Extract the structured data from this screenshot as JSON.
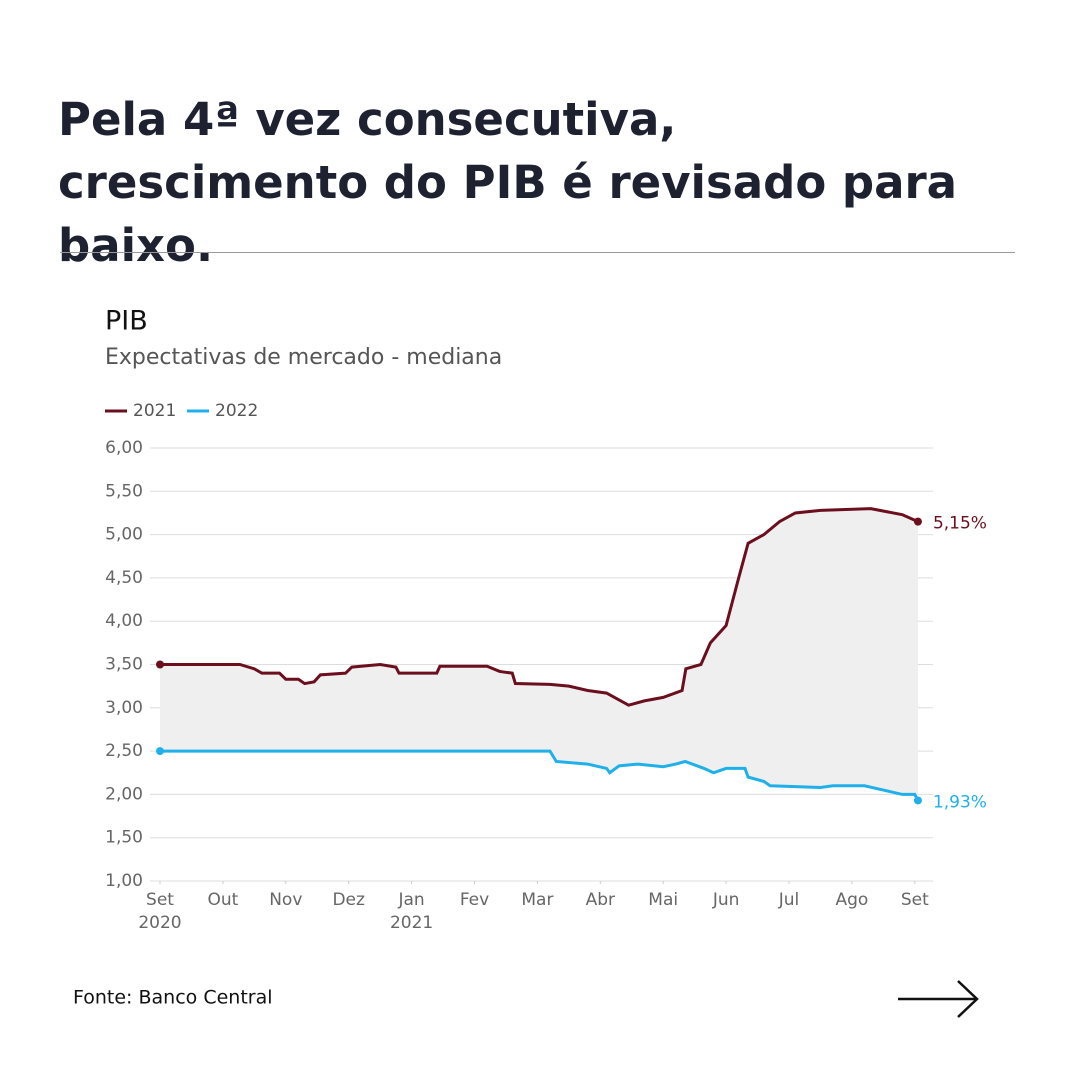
{
  "headline": "Pela 4ª vez consecutiva, crescimento do PIB é revisado para baixo.",
  "chart_data": {
    "type": "line",
    "title": "PIB",
    "subtitle": "Expectativas de mercado - mediana",
    "xlim": [
      0,
      12.5
    ],
    "xticks": [
      {
        "value": 0,
        "label": "Set"
      },
      {
        "value": 1,
        "label": "Out"
      },
      {
        "value": 2,
        "label": "Nov"
      },
      {
        "value": 3,
        "label": "Dez"
      },
      {
        "value": 4,
        "label": "Jan"
      },
      {
        "value": 5,
        "label": "Fev"
      },
      {
        "value": 6,
        "label": "Mar"
      },
      {
        "value": 7,
        "label": "Abr"
      },
      {
        "value": 8,
        "label": "Mai"
      },
      {
        "value": 9,
        "label": "Jun"
      },
      {
        "value": 10,
        "label": "Jul"
      },
      {
        "value": 11,
        "label": "Ago"
      },
      {
        "value": 12,
        "label": "Set"
      }
    ],
    "xtick_years": [
      {
        "value": 0,
        "label": "2020"
      },
      {
        "value": 4,
        "label": "2021"
      }
    ],
    "ylim": [
      1,
      6
    ],
    "yticks": [
      {
        "value": 1,
        "label": "1,00"
      },
      {
        "value": 1.5,
        "label": "1,50"
      },
      {
        "value": 2,
        "label": "2,00"
      },
      {
        "value": 2.5,
        "label": "2,50"
      },
      {
        "value": 3,
        "label": "3,00"
      },
      {
        "value": 3.5,
        "label": "3,50"
      },
      {
        "value": 4,
        "label": "4,00"
      },
      {
        "value": 4.5,
        "label": "4,50"
      },
      {
        "value": 5,
        "label": "5,00"
      },
      {
        "value": 5.5,
        "label": "5,50"
      },
      {
        "value": 6,
        "label": "6,00"
      }
    ],
    "grid": true,
    "series": [
      {
        "name": "2021",
        "color": "#6b0f1f",
        "x": [
          0,
          1.27,
          1.5,
          1.62,
          1.9,
          2.0,
          2.2,
          2.3,
          2.45,
          2.55,
          2.95,
          3.05,
          3.5,
          3.75,
          3.8,
          4.4,
          4.45,
          5.2,
          5.4,
          5.6,
          5.65,
          6.2,
          6.5,
          6.8,
          7.1,
          7.45,
          7.7,
          8.0,
          8.3,
          8.36,
          8.6,
          8.75,
          9.0,
          9.2,
          9.35,
          9.6,
          9.85,
          10.1,
          10.5,
          11.3,
          11.8,
          12.05
        ],
        "values": [
          3.5,
          3.5,
          3.45,
          3.4,
          3.4,
          3.33,
          3.33,
          3.28,
          3.3,
          3.38,
          3.4,
          3.47,
          3.5,
          3.47,
          3.4,
          3.4,
          3.48,
          3.48,
          3.42,
          3.4,
          3.28,
          3.27,
          3.25,
          3.2,
          3.17,
          3.03,
          3.08,
          3.12,
          3.2,
          3.45,
          3.5,
          3.75,
          3.95,
          4.5,
          4.9,
          5.0,
          5.15,
          5.25,
          5.28,
          5.3,
          5.23,
          5.15
        ],
        "value_labels": [
          null,
          null,
          null,
          null,
          null,
          null,
          null,
          null,
          null,
          null,
          null,
          null,
          null,
          null,
          null,
          null,
          null,
          null,
          null,
          null,
          null,
          null,
          null,
          null,
          null,
          null,
          null,
          null,
          null,
          null,
          null,
          null,
          null,
          null,
          null,
          null,
          null,
          null,
          null,
          null,
          null,
          "5,15%"
        ]
      },
      {
        "name": "2022",
        "color": "#1fb0ea",
        "x": [
          0,
          6.2,
          6.3,
          6.8,
          7.1,
          7.15,
          7.3,
          7.6,
          8.0,
          8.2,
          8.35,
          8.65,
          8.8,
          9.0,
          9.3,
          9.35,
          9.6,
          9.7,
          10.5,
          10.7,
          11.2,
          11.5,
          11.8,
          12.0,
          12.05
        ],
        "values": [
          2.5,
          2.5,
          2.38,
          2.35,
          2.3,
          2.25,
          2.33,
          2.35,
          2.32,
          2.35,
          2.38,
          2.3,
          2.25,
          2.3,
          2.3,
          2.2,
          2.15,
          2.1,
          2.08,
          2.1,
          2.1,
          2.05,
          2.0,
          2.0,
          1.93
        ],
        "value_labels": [
          null,
          null,
          null,
          null,
          null,
          null,
          null,
          null,
          null,
          null,
          null,
          null,
          null,
          null,
          null,
          null,
          null,
          null,
          null,
          null,
          null,
          null,
          null,
          null,
          "1,93%"
        ]
      }
    ]
  },
  "source": "Fonte: Banco Central"
}
